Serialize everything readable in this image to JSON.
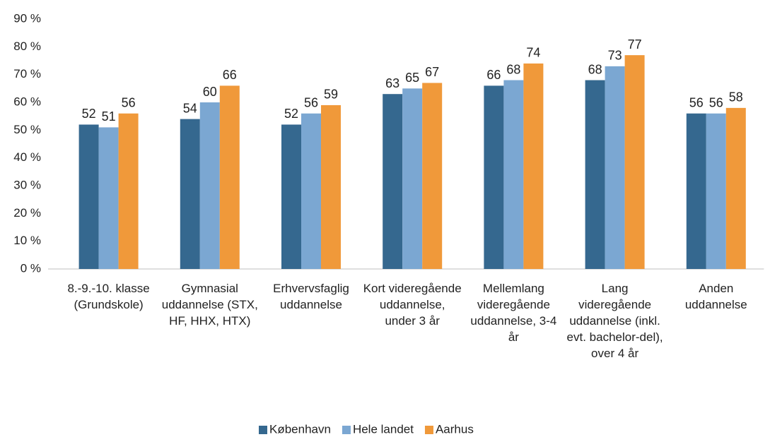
{
  "chart_data": {
    "type": "bar",
    "categories": [
      "8.-9.-10. klasse (Grundskole)",
      "Gymnasial uddannelse (STX, HF, HHX, HTX)",
      "Erhvervsfaglig uddannelse",
      "Kort videregående uddannelse, under 3 år",
      "Mellemlang videregående uddannelse, 3-4 år",
      "Lang videregående uddannelse (inkl. evt. bachelor-del), over 4 år",
      "Anden uddannelse"
    ],
    "series": [
      {
        "name": "København",
        "color": "#35688f",
        "values": [
          52,
          54,
          52,
          63,
          66,
          68,
          56
        ]
      },
      {
        "name": "Hele landet",
        "color": "#7ba7d2",
        "values": [
          51,
          60,
          56,
          65,
          68,
          73,
          56
        ]
      },
      {
        "name": "Aarhus",
        "color": "#f0993a",
        "values": [
          56,
          66,
          59,
          67,
          74,
          77,
          58
        ]
      }
    ],
    "ylim": [
      0,
      90
    ],
    "yticks": [
      {
        "value": 0,
        "label": "0 %"
      },
      {
        "value": 10,
        "label": "10 %"
      },
      {
        "value": 20,
        "label": "20 %"
      },
      {
        "value": 30,
        "label": "30 %"
      },
      {
        "value": 40,
        "label": "40 %"
      },
      {
        "value": 50,
        "label": "50 %"
      },
      {
        "value": 60,
        "label": "60 %"
      },
      {
        "value": 70,
        "label": "70 %"
      },
      {
        "value": 80,
        "label": "80 %"
      },
      {
        "value": 90,
        "label": "90 %"
      }
    ],
    "grid": false,
    "legend": "bottom"
  }
}
